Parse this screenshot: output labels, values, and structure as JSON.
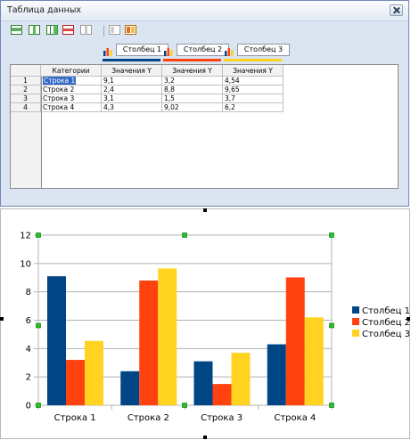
{
  "window": {
    "title": "Таблица данных"
  },
  "toolbar": {
    "buttons": [
      {
        "icon": "insert-row-icon"
      },
      {
        "icon": "insert-column-icon"
      },
      {
        "icon": "insert-series-icon"
      },
      {
        "icon": "delete-row-icon"
      },
      {
        "icon": "delete-column-icon"
      },
      {
        "icon": "move-left-icon"
      },
      {
        "icon": "move-right-icon"
      }
    ]
  },
  "series_headers": [
    {
      "name": "Столбец 1",
      "color": "#004586"
    },
    {
      "name": "Столбец 2",
      "color": "#ff420e"
    },
    {
      "name": "Столбец 3",
      "color": "#ffd320"
    }
  ],
  "table": {
    "columns": [
      "Категории",
      "Значения Y",
      "Значения Y",
      "Значения Y"
    ],
    "rows": [
      {
        "num": "1",
        "cells": [
          "Строка 1",
          "9,1",
          "3,2",
          "4,54"
        ]
      },
      {
        "num": "2",
        "cells": [
          "Строка 2",
          "2,4",
          "8,8",
          "9,65"
        ]
      },
      {
        "num": "3",
        "cells": [
          "Строка 3",
          "3,1",
          "1,5",
          "3,7"
        ]
      },
      {
        "num": "4",
        "cells": [
          "Строка 4",
          "4,3",
          "9,02",
          "6,2"
        ]
      }
    ]
  },
  "chart_data": {
    "type": "bar",
    "categories": [
      "Строка 1",
      "Строка 2",
      "Строка 3",
      "Строка 4"
    ],
    "series": [
      {
        "name": "Столбец 1",
        "values": [
          9.1,
          2.4,
          3.1,
          4.3
        ],
        "color": "#004586"
      },
      {
        "name": "Столбец 2",
        "values": [
          3.2,
          8.8,
          1.5,
          9.02
        ],
        "color": "#ff420e"
      },
      {
        "name": "Столбец 3",
        "values": [
          4.54,
          9.65,
          3.7,
          6.2
        ],
        "color": "#ffd320"
      }
    ],
    "ylim": [
      0,
      12
    ],
    "yticks": [
      "0",
      "2",
      "4",
      "6",
      "8",
      "10",
      "12"
    ],
    "grid": true,
    "legend": "right"
  }
}
